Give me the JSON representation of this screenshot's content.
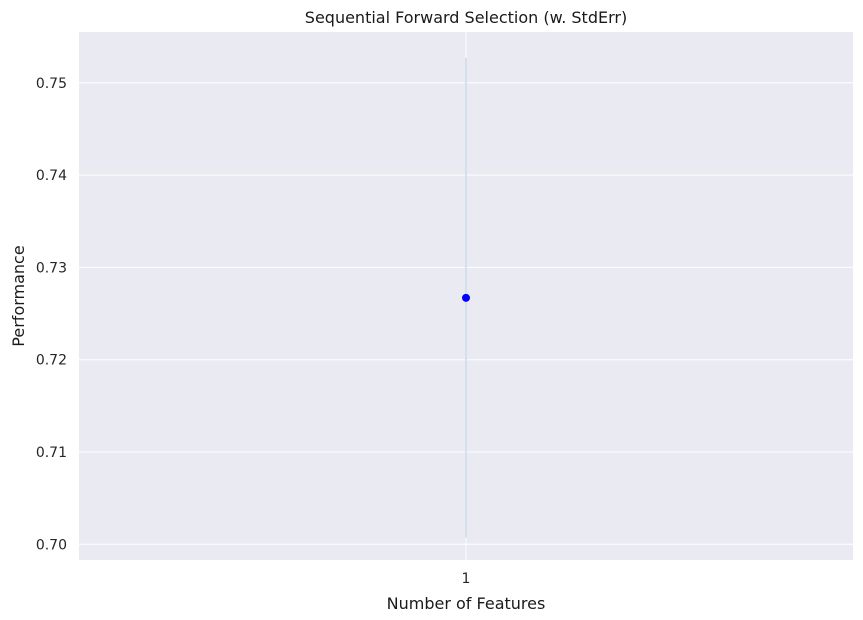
{
  "chart_data": {
    "type": "line",
    "title": "Sequential Forward Selection (w. StdErr)",
    "xlabel": "Number of Features",
    "ylabel": "Performance",
    "x": [
      1
    ],
    "x_tick_labels": [
      "1"
    ],
    "series": [
      {
        "values": [
          0.7267
        ],
        "std_err_band": {
          "lower": [
            0.7007
          ],
          "upper": [
            0.7527
          ]
        },
        "color": "#0000ff"
      }
    ],
    "ylim": [
      0.6983,
      0.7555
    ],
    "y_ticks": [
      0.7,
      0.71,
      0.72,
      0.73,
      0.74,
      0.75
    ],
    "y_tick_labels": [
      "0.70",
      "0.71",
      "0.72",
      "0.73",
      "0.74",
      "0.75"
    ],
    "grid": true,
    "colors": {
      "background": "#eaeaf2",
      "grid": "#ffffff",
      "point": "#0000ff",
      "band": "#d6e0ea"
    }
  }
}
